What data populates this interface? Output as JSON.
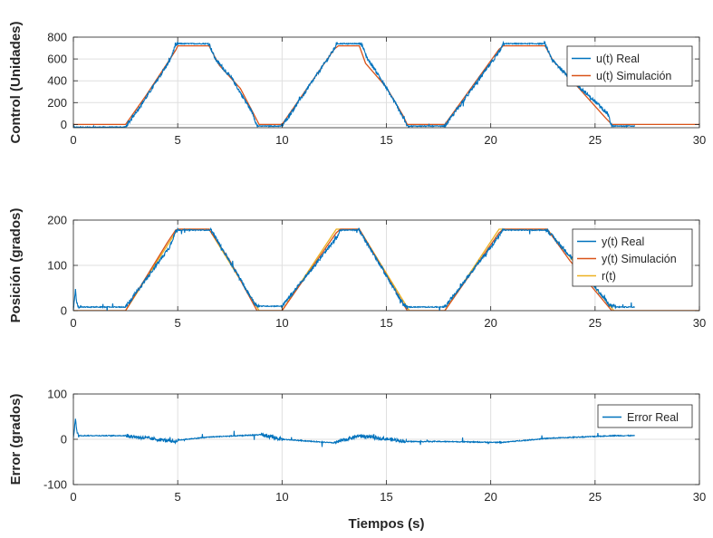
{
  "chart_data": [
    {
      "type": "line",
      "ylabel": "Control (Unidades)",
      "xlabel": "",
      "xlim": [
        0,
        30
      ],
      "ylim": [
        -30,
        800
      ],
      "xticks": [
        0,
        5,
        10,
        15,
        20,
        25,
        30
      ],
      "yticks": [
        0,
        200,
        400,
        600,
        800
      ],
      "grid": true,
      "legend_position": "top-right",
      "series": [
        {
          "name": "u(t) Real",
          "color": "#0072BD",
          "noisy": true,
          "x": [
            0,
            0.2,
            2.5,
            3.5,
            4.6,
            4.85,
            5.0,
            6.5,
            6.8,
            7.6,
            8.6,
            8.8,
            10.0,
            12.5,
            12.6,
            13.8,
            14.1,
            14.6,
            15.6,
            16.0,
            17.8,
            20.5,
            20.6,
            22.6,
            22.9,
            23.6,
            25.6,
            25.8,
            26.9
          ],
          "y": [
            -25,
            -25,
            -25,
            250,
            580,
            700,
            740,
            740,
            600,
            420,
            100,
            -15,
            -15,
            690,
            740,
            740,
            600,
            460,
            140,
            -15,
            -15,
            690,
            740,
            740,
            600,
            460,
            100,
            -15,
            -15
          ]
        },
        {
          "name": "u(t) Simulación",
          "color": "#D95319",
          "noisy": false,
          "x": [
            0,
            2.5,
            3.5,
            4.5,
            4.9,
            5.0,
            6.5,
            7.0,
            8.0,
            8.6,
            8.9,
            10.0,
            12.5,
            12.7,
            13.7,
            14.0,
            15.0,
            15.8,
            16.0,
            17.8,
            20.4,
            20.6,
            22.6,
            23.0,
            24.0,
            25.5,
            25.8,
            30
          ],
          "y": [
            0,
            0,
            270,
            560,
            680,
            720,
            720,
            540,
            330,
            110,
            0,
            0,
            690,
            720,
            720,
            560,
            340,
            80,
            0,
            0,
            690,
            720,
            720,
            580,
            380,
            60,
            0,
            0
          ]
        }
      ]
    },
    {
      "type": "line",
      "ylabel": "Posición (grados)",
      "xlabel": "",
      "xlim": [
        0,
        30
      ],
      "ylim": [
        0,
        200
      ],
      "xticks": [
        0,
        5,
        10,
        15,
        20,
        25,
        30
      ],
      "yticks": [
        0,
        100,
        200
      ],
      "grid": true,
      "legend_position": "top-right",
      "series": [
        {
          "name": "y(t) Real",
          "color": "#0072BD",
          "noisy": true,
          "x": [
            0,
            0.1,
            0.15,
            0.25,
            2.5,
            4.6,
            4.9,
            5.0,
            6.6,
            8.7,
            8.9,
            10.0,
            12.6,
            12.8,
            13.7,
            15.8,
            16.0,
            17.8,
            20.4,
            20.6,
            22.7,
            24.0,
            25.7,
            26.0,
            26.9
          ],
          "y": [
            5,
            45,
            20,
            8,
            8,
            140,
            175,
            178,
            178,
            15,
            10,
            10,
            160,
            178,
            178,
            15,
            8,
            8,
            165,
            178,
            178,
            110,
            12,
            8,
            8
          ]
        },
        {
          "name": "y(t) Simulación",
          "color": "#D95319",
          "noisy": false,
          "x": [
            0,
            2.5,
            4.5,
            4.9,
            5.0,
            6.5,
            7.5,
            8.8,
            10.0,
            12.6,
            12.8,
            13.7,
            14.6,
            16.0,
            17.8,
            20.4,
            20.6,
            22.7,
            23.8,
            25.8,
            30
          ],
          "y": [
            0,
            0,
            150,
            178,
            180,
            180,
            110,
            0,
            0,
            172,
            180,
            180,
            110,
            0,
            0,
            172,
            180,
            180,
            110,
            0,
            0
          ]
        },
        {
          "name": "r(t)",
          "color": "#EDB120",
          "noisy": false,
          "x": [
            0,
            2.5,
            5.0,
            6.5,
            8.9,
            10.0,
            12.6,
            13.7,
            16.1,
            17.8,
            20.4,
            22.7,
            25.9,
            30
          ],
          "y": [
            0,
            0,
            180,
            180,
            0,
            0,
            180,
            180,
            0,
            0,
            180,
            180,
            0,
            0
          ]
        }
      ]
    },
    {
      "type": "line",
      "ylabel": "Error (grados)",
      "xlabel": "Tiempos (s)",
      "xlim": [
        0,
        30
      ],
      "ylim": [
        -100,
        100
      ],
      "xticks": [
        0,
        5,
        10,
        15,
        20,
        25,
        30
      ],
      "yticks": [
        -100,
        0,
        100
      ],
      "grid": true,
      "legend_position": "top-right",
      "series": [
        {
          "name": "Error Real",
          "color": "#0072BD",
          "noisy": true,
          "x": [
            0,
            0.1,
            0.15,
            0.25,
            2.5,
            4.9,
            5.0,
            6.5,
            9.0,
            10.0,
            12.5,
            13.7,
            16.0,
            17.8,
            20.5,
            22.7,
            25.9,
            26.9
          ],
          "y": [
            5,
            45,
            20,
            8,
            8,
            -5,
            -2,
            5,
            10,
            0,
            -8,
            8,
            -5,
            -5,
            -7,
            2,
            8,
            8
          ]
        }
      ]
    }
  ]
}
